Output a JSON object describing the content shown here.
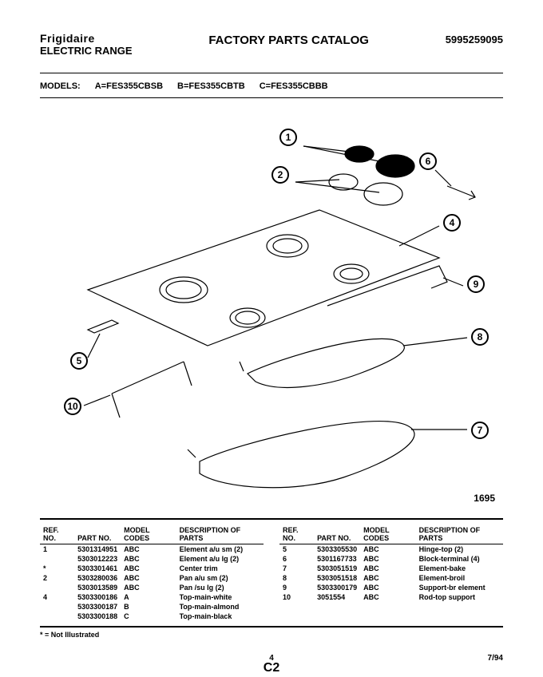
{
  "header": {
    "brand": "Frigidaire",
    "product_type": "ELECTRIC RANGE",
    "catalog_title": "FACTORY PARTS CATALOG",
    "catalog_no": "5995259095"
  },
  "models": {
    "label": "MODELS:",
    "a": "A=FES355CBSB",
    "b": "B=FES355CBTB",
    "c": "C=FES355CBBB"
  },
  "callouts": {
    "c1": "1",
    "c2": "2",
    "c4": "4",
    "c5": "5",
    "c6": "6",
    "c7": "7",
    "c8": "8",
    "c9": "9",
    "c10": "10"
  },
  "diagram_number": "1695",
  "table": {
    "headers": {
      "ref": "REF.\nNO.",
      "part": "PART\nNO.",
      "model": "MODEL\nCODES",
      "desc": "DESCRIPTION\nOF PARTS"
    },
    "left": [
      {
        "ref": "1",
        "part": "5301314951",
        "model": "ABC",
        "desc": "Element a/u sm (2)"
      },
      {
        "ref": "",
        "part": "5303012223",
        "model": "ABC",
        "desc": "Element a/u lg (2)"
      },
      {
        "ref": "*",
        "part": "5303301461",
        "model": "ABC",
        "desc": "Center trim"
      },
      {
        "ref": "2",
        "part": "5303280036",
        "model": "ABC",
        "desc": "Pan a/u sm (2)"
      },
      {
        "ref": "",
        "part": "5303013589",
        "model": "ABC",
        "desc": "Pan /su lg (2)"
      },
      {
        "ref": "4",
        "part": "5303300186",
        "model": "A",
        "desc": "Top-main-white"
      },
      {
        "ref": "",
        "part": "5303300187",
        "model": "B",
        "desc": "Top-main-almond"
      },
      {
        "ref": "",
        "part": "5303300188",
        "model": "C",
        "desc": "Top-main-black"
      }
    ],
    "right": [
      {
        "ref": "5",
        "part": "5303305530",
        "model": "ABC",
        "desc": "Hinge-top (2)"
      },
      {
        "ref": "6",
        "part": "5301167733",
        "model": "ABC",
        "desc": "Block-terminal (4)"
      },
      {
        "ref": "7",
        "part": "5303051519",
        "model": "ABC",
        "desc": "Element-bake"
      },
      {
        "ref": "8",
        "part": "5303051518",
        "model": "ABC",
        "desc": "Element-broil"
      },
      {
        "ref": "9",
        "part": "5303300179",
        "model": "ABC",
        "desc": "Support-br element"
      },
      {
        "ref": "10",
        "part": "3051554",
        "model": "ABC",
        "desc": "Rod-top support"
      }
    ]
  },
  "footnote": "* = Not Illustrated",
  "footer": {
    "pagenum": "4",
    "date": "7/94",
    "section": "C2"
  }
}
